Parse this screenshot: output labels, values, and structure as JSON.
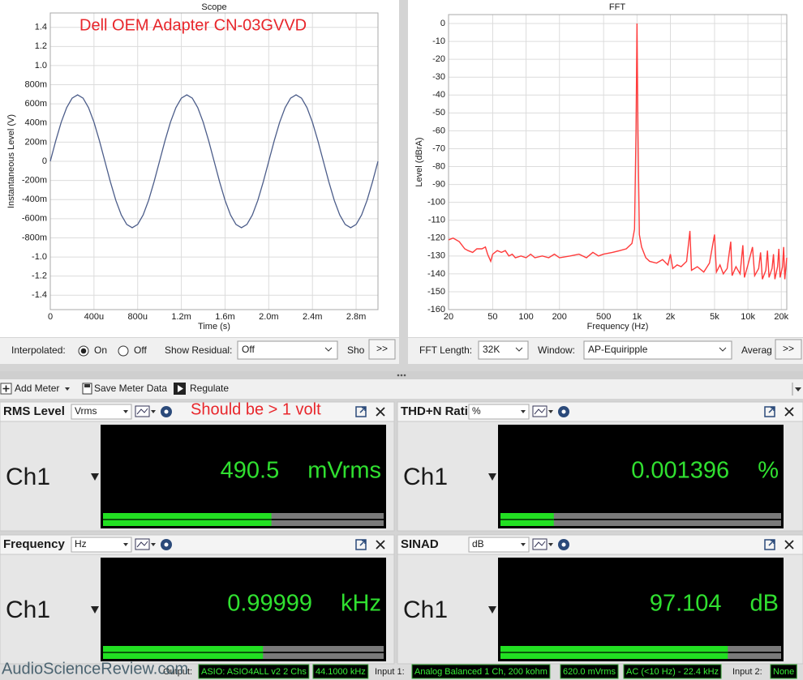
{
  "chart_data": [
    {
      "type": "line",
      "title": "Scope",
      "annotation": "Dell OEM Adapter CN-03GVVD",
      "x_label": "Time (s)",
      "y_label": "Instantaneous Level (V)",
      "x": [
        0,
        5e-05,
        0.0001,
        0.00015,
        0.0002,
        0.00025,
        0.0003,
        0.00035,
        0.0004,
        0.00045,
        0.0005,
        0.00055,
        0.0006,
        0.00065,
        0.0007,
        0.00075,
        0.0008,
        0.00085,
        0.0009,
        0.00095,
        0.001,
        0.00105,
        0.0011,
        0.00115,
        0.0012,
        0.00125,
        0.0013,
        0.00135,
        0.0014,
        0.00145,
        0.0015,
        0.00155,
        0.0016,
        0.00165,
        0.0017,
        0.00175,
        0.0018,
        0.00185,
        0.0019,
        0.00195,
        0.002,
        0.00205,
        0.0021,
        0.00215,
        0.0022,
        0.00225,
        0.0023,
        0.00235,
        0.0024,
        0.00245,
        0.0025,
        0.00255,
        0.0026,
        0.00265,
        0.0027,
        0.00275,
        0.0028,
        0.00285,
        0.0029,
        0.00295,
        0.003
      ],
      "values": [
        0,
        0.214,
        0.408,
        0.561,
        0.66,
        0.694,
        0.66,
        0.561,
        0.408,
        0.214,
        0,
        -0.214,
        -0.408,
        -0.561,
        -0.66,
        -0.694,
        -0.66,
        -0.561,
        -0.408,
        -0.214,
        0,
        0.214,
        0.408,
        0.561,
        0.66,
        0.694,
        0.66,
        0.561,
        0.408,
        0.214,
        0,
        -0.214,
        -0.408,
        -0.561,
        -0.66,
        -0.694,
        -0.66,
        -0.561,
        -0.408,
        -0.214,
        0,
        0.214,
        0.408,
        0.561,
        0.66,
        0.694,
        0.66,
        0.561,
        0.408,
        0.214,
        0,
        -0.214,
        -0.408,
        -0.561,
        -0.66,
        -0.694,
        -0.66,
        -0.561,
        -0.408,
        -0.214,
        0
      ],
      "color": "#4c5d8a",
      "xlim": [
        0,
        0.003
      ],
      "xticks": [
        0,
        {
          "value": 0.0004,
          "label": "400u"
        },
        {
          "value": 0.0008,
          "label": "800u"
        },
        {
          "value": 0.0012,
          "label": "1.2m"
        },
        {
          "value": 0.0016,
          "label": "1.6m"
        },
        {
          "value": 0.002,
          "label": "2.0m"
        },
        {
          "value": 0.0024,
          "label": "2.4m"
        },
        {
          "value": 0.0028,
          "label": "2.8m"
        }
      ],
      "ylim": [
        -1.55,
        1.55
      ],
      "yticks": [
        1.4,
        1.2,
        {
          "value": 1,
          "label": "1.0"
        },
        {
          "value": 0.8,
          "label": "800m"
        },
        {
          "value": 0.6,
          "label": "600m"
        },
        {
          "value": 0.4,
          "label": "400m"
        },
        {
          "value": 0.2,
          "label": "200m"
        },
        0,
        {
          "value": -0.2,
          "label": "-200m"
        },
        {
          "value": -0.4,
          "label": "-400m"
        },
        {
          "value": -0.6,
          "label": "-600m"
        },
        {
          "value": -0.8,
          "label": "-800m"
        },
        {
          "value": -1,
          "label": "-1.0"
        },
        -1.2,
        -1.4
      ],
      "grid": true
    },
    {
      "type": "line",
      "title": "FFT",
      "x_label": "Frequency (Hz)",
      "y_label": "Level (dBrA)",
      "x": [
        20,
        22,
        25,
        28,
        30,
        33,
        36,
        40,
        43,
        45,
        48,
        50,
        55,
        60,
        65,
        70,
        75,
        80,
        90,
        100,
        110,
        120,
        140,
        160,
        180,
        200,
        250,
        300,
        350,
        400,
        450,
        500,
        600,
        700,
        800,
        900,
        950,
        980,
        1000,
        1020,
        1050,
        1100,
        1200,
        1300,
        1500,
        1700,
        1900,
        2000,
        2100,
        2300,
        2500,
        2800,
        3000,
        3100,
        3500,
        4000,
        4500,
        5000,
        5200,
        5600,
        6000,
        6500,
        7000,
        7200,
        7800,
        8500,
        9000,
        9300,
        10000,
        11000,
        11500,
        12500,
        13000,
        13500,
        14500,
        15000,
        15500,
        16500,
        17000,
        17500,
        18500,
        19000,
        19500,
        20500,
        21000,
        21500,
        22400
      ],
      "values": [
        -121,
        -120,
        -122,
        -126,
        -127,
        -128,
        -126,
        -126,
        -125,
        -129,
        -133,
        -129,
        -127,
        -128,
        -127,
        -130,
        -129,
        -131,
        -130,
        -131,
        -129,
        -131,
        -130,
        -131,
        -129,
        -131,
        -130,
        -129,
        -131,
        -128,
        -130,
        -129,
        -128,
        -127,
        -126,
        -123,
        -115,
        -60,
        0,
        -60,
        -118,
        -125,
        -131,
        -133,
        -134,
        -132,
        -135,
        -129,
        -137,
        -135,
        -136,
        -133,
        -116,
        -138,
        -136,
        -139,
        -134,
        -118,
        -139,
        -135,
        -140,
        -137,
        -122,
        -141,
        -136,
        -140,
        -124,
        -142,
        -135,
        -125,
        -141,
        -137,
        -128,
        -143,
        -138,
        -127,
        -142,
        -137,
        -129,
        -143,
        -136,
        -126,
        -142,
        -136,
        -125,
        -143,
        -131
      ],
      "color": "#ff3b3b",
      "log_x": true,
      "xlim": [
        20,
        22400
      ],
      "xticks": [
        20,
        50,
        100,
        200,
        500,
        {
          "value": 1000,
          "label": "1k"
        },
        {
          "value": 2000,
          "label": "2k"
        },
        {
          "value": 5000,
          "label": "5k"
        },
        {
          "value": 10000,
          "label": "10k"
        },
        {
          "value": 20000,
          "label": "20k"
        }
      ],
      "ylim": [
        -160,
        5
      ],
      "yticks": [
        0,
        -10,
        -20,
        -30,
        -40,
        -50,
        -60,
        -70,
        -80,
        -90,
        -100,
        -110,
        -120,
        -130,
        -140,
        -150,
        -160
      ],
      "grid": true
    }
  ],
  "scope_controls": {
    "interpolated_label": "Interpolated:",
    "on": "On",
    "off": "Off",
    "residual_label": "Show Residual:",
    "residual_value": "Off",
    "more_label": "Sho",
    "expand": ">>"
  },
  "fft_controls": {
    "length_label": "FFT Length:",
    "length_value": "32K",
    "window_label": "Window:",
    "window_value": "AP-Equiripple",
    "averaging_label": "Averag",
    "expand": ">>"
  },
  "toolbar": {
    "add_meter": "Add Meter",
    "save": "Save Meter Data",
    "regulate": "Regulate"
  },
  "meters": [
    {
      "title": "RMS Level",
      "unit_select": "Vrms",
      "channel": "Ch1",
      "reading": "490.5",
      "unit": "mVrms",
      "bar_level": 0.6,
      "annotation": "Should be > 1 volt"
    },
    {
      "title": "THD+N Ratio",
      "unit_select": "%",
      "channel": "Ch1",
      "reading": "0.001396",
      "unit": "%",
      "bar_level": 0.19
    },
    {
      "title": "Frequency",
      "unit_select": "Hz",
      "channel": "Ch1",
      "reading": "0.99999",
      "unit": "kHz",
      "bar_level": 0.57
    },
    {
      "title": "SINAD",
      "unit_select": "dB",
      "channel": "Ch1",
      "reading": "97.104",
      "unit": "dB",
      "bar_level": 0.81
    }
  ],
  "status_bar": {
    "output_label": "Output:",
    "output_device": "ASIO: ASIO4ALL v2 2 Chs",
    "sample_rate": "44.1000 kHz",
    "input1_label": "Input 1:",
    "input1_device": "Analog Balanced 1 Ch, 200 kohm",
    "input1_level": "620.0 mVrms",
    "input1_bandwidth": "AC (<10 Hz) - 22.4 kHz",
    "input2_label": "Input 2:",
    "input2_device": "None"
  },
  "watermark": "AudioScienceReview.com"
}
